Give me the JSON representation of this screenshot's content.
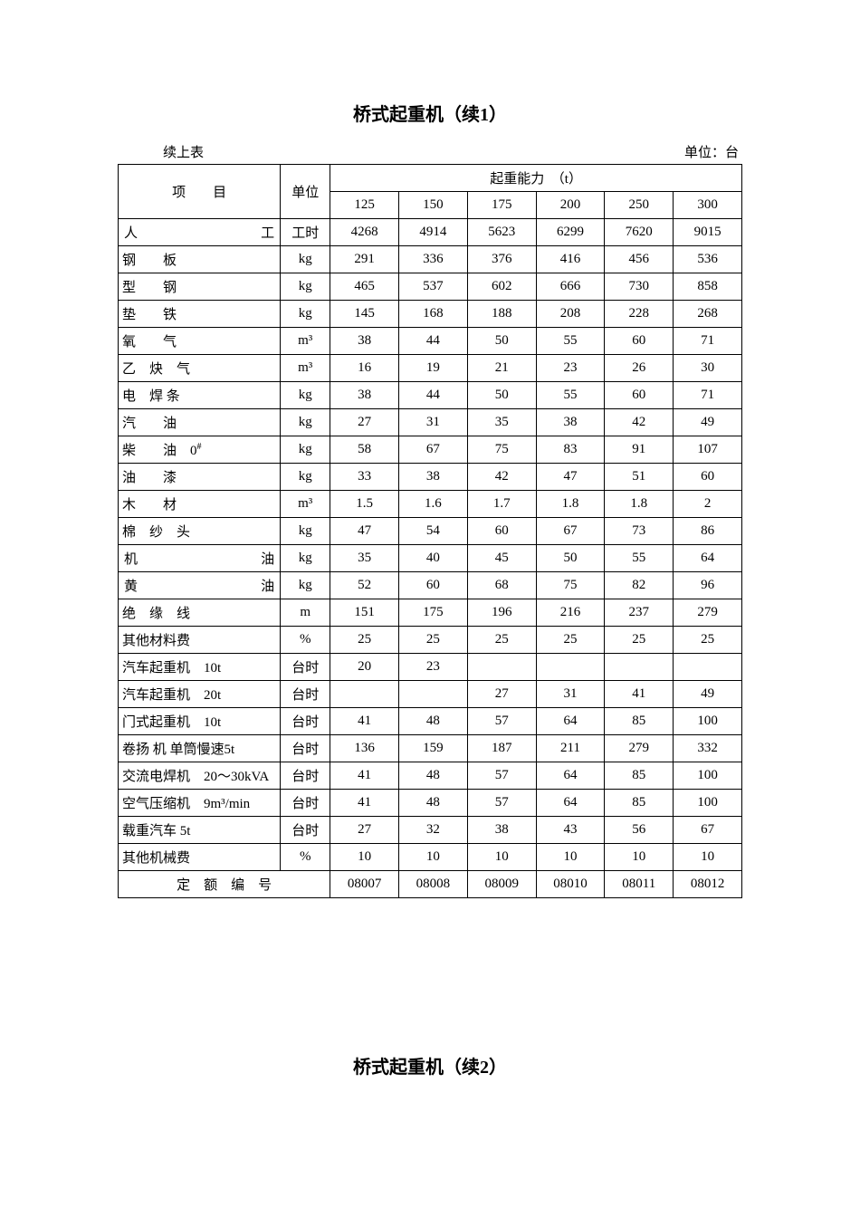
{
  "title1": "桥式起重机（续1）",
  "continued_label": "续上表",
  "unit_label": "单位：台",
  "header": {
    "item": "项　　目",
    "unit": "单位",
    "capacity": "起重能力　（t）",
    "capacities": [
      "125",
      "150",
      "175",
      "200",
      "250",
      "300"
    ]
  },
  "rows": [
    {
      "label_parts": [
        "人",
        "工"
      ],
      "type": "spaced-2",
      "unit": "工时",
      "vals": [
        "4268",
        "4914",
        "5623",
        "6299",
        "7620",
        "9015"
      ]
    },
    {
      "label_parts": [
        "钢",
        "板"
      ],
      "type": "spaced-gap",
      "unit": "kg",
      "vals": [
        "291",
        "336",
        "376",
        "416",
        "456",
        "536"
      ]
    },
    {
      "label_parts": [
        "型",
        "钢"
      ],
      "type": "spaced-gap",
      "unit": "kg",
      "vals": [
        "465",
        "537",
        "602",
        "666",
        "730",
        "858"
      ]
    },
    {
      "label_parts": [
        "垫",
        "铁"
      ],
      "type": "spaced-gap",
      "unit": "kg",
      "vals": [
        "145",
        "168",
        "188",
        "208",
        "228",
        "268"
      ]
    },
    {
      "label_parts": [
        "氧",
        "气"
      ],
      "type": "spaced-gap",
      "unit": "m³",
      "vals": [
        "38",
        "44",
        "50",
        "55",
        "60",
        "71"
      ]
    },
    {
      "label_parts": [
        "乙",
        "炔",
        "气"
      ],
      "type": "spaced-3-gap",
      "unit": "m³",
      "vals": [
        "16",
        "19",
        "21",
        "23",
        "26",
        "30"
      ]
    },
    {
      "label_parts": [
        "电",
        "焊 条"
      ],
      "type": "spaced-gap-tight",
      "unit": "kg",
      "vals": [
        "38",
        "44",
        "50",
        "55",
        "60",
        "71"
      ]
    },
    {
      "label_parts": [
        "汽",
        "油"
      ],
      "type": "spaced-gap",
      "unit": "kg",
      "vals": [
        "27",
        "31",
        "35",
        "38",
        "42",
        "49"
      ]
    },
    {
      "label": "柴　　油　0",
      "sup": "#",
      "type": "plain-sup",
      "unit": "kg",
      "vals": [
        "58",
        "67",
        "75",
        "83",
        "91",
        "107"
      ]
    },
    {
      "label_parts": [
        "油",
        "漆"
      ],
      "type": "spaced-gap",
      "unit": "kg",
      "vals": [
        "33",
        "38",
        "42",
        "47",
        "51",
        "60"
      ]
    },
    {
      "label_parts": [
        "木",
        "材"
      ],
      "type": "spaced-gap",
      "unit": "m³",
      "vals": [
        "1.5",
        "1.6",
        "1.7",
        "1.8",
        "1.8",
        "2"
      ]
    },
    {
      "label_parts": [
        "棉",
        "纱",
        "头"
      ],
      "type": "spaced-3-gap",
      "unit": "kg",
      "vals": [
        "47",
        "54",
        "60",
        "67",
        "73",
        "86"
      ]
    },
    {
      "label_parts": [
        "机",
        "油"
      ],
      "type": "spaced-2",
      "unit": "kg",
      "vals": [
        "35",
        "40",
        "45",
        "50",
        "55",
        "64"
      ]
    },
    {
      "label_parts": [
        "黄",
        "油"
      ],
      "type": "spaced-2",
      "unit": "kg",
      "vals": [
        "52",
        "60",
        "68",
        "75",
        "82",
        "96"
      ]
    },
    {
      "label_parts": [
        "绝",
        "缘",
        "线"
      ],
      "type": "spaced-3-gap",
      "unit": "m",
      "vals": [
        "151",
        "175",
        "196",
        "216",
        "237",
        "279"
      ]
    },
    {
      "label": "其他材料费",
      "type": "plain",
      "unit": "%",
      "vals": [
        "25",
        "25",
        "25",
        "25",
        "25",
        "25"
      ]
    },
    {
      "label": "汽车起重机　10t",
      "type": "plain",
      "unit": "台时",
      "vals": [
        "20",
        "23",
        "",
        "",
        "",
        ""
      ]
    },
    {
      "label": "汽车起重机　20t",
      "type": "plain",
      "unit": "台时",
      "vals": [
        "",
        "",
        "27",
        "31",
        "41",
        "49"
      ]
    },
    {
      "label": "门式起重机　10t",
      "type": "plain",
      "unit": "台时",
      "vals": [
        "41",
        "48",
        "57",
        "64",
        "85",
        "100"
      ]
    },
    {
      "label": "卷扬 机 单筒慢速5t",
      "type": "plain",
      "unit": "台时",
      "vals": [
        "136",
        "159",
        "187",
        "211",
        "279",
        "332"
      ]
    },
    {
      "label": "交流电焊机　20～30kVA",
      "type": "plain",
      "unit": "台时",
      "vals": [
        "41",
        "48",
        "57",
        "64",
        "85",
        "100"
      ]
    },
    {
      "label": "空气压缩机　9m³/min",
      "type": "plain",
      "unit": "台时",
      "vals": [
        "41",
        "48",
        "57",
        "64",
        "85",
        "100"
      ]
    },
    {
      "label": "载重汽车 5t",
      "type": "plain",
      "unit": "台时",
      "vals": [
        "27",
        "32",
        "38",
        "43",
        "56",
        "67"
      ]
    },
    {
      "label": "其他机械费",
      "type": "plain",
      "unit": "%",
      "vals": [
        "10",
        "10",
        "10",
        "10",
        "10",
        "10"
      ]
    }
  ],
  "footer": {
    "label": "定　额　编　号",
    "vals": [
      "08007",
      "08008",
      "08009",
      "08010",
      "08011",
      "08012"
    ]
  },
  "title2": "桥式起重机（续2）"
}
